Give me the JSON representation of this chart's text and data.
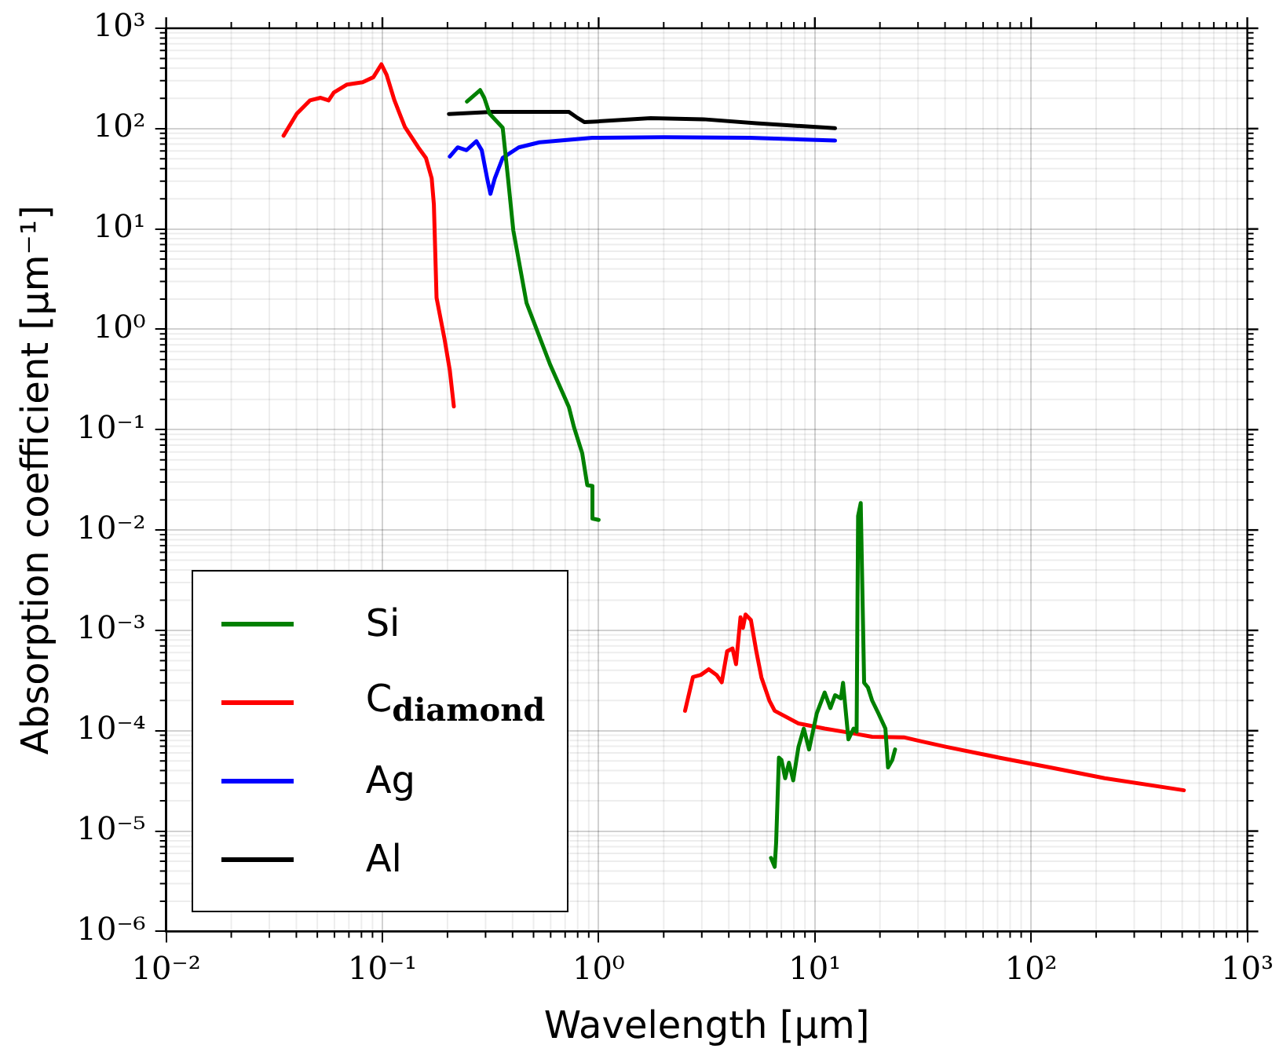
{
  "chart_data": {
    "type": "line",
    "xlabel": "Wavelength [µm]",
    "ylabel": "Absorption coefficient [µm⁻¹]",
    "log": "xy",
    "grid": true,
    "legend": "bottom left",
    "line_style": "solid",
    "marker": "none",
    "xlim": [
      0.01,
      1000
    ],
    "xticks": [
      {
        "value": 0.01,
        "label": "10⁻²"
      },
      {
        "value": 0.1,
        "label": "10⁻¹"
      },
      {
        "value": 1,
        "label": "10⁰"
      },
      {
        "value": 10,
        "label": "10¹"
      },
      {
        "value": 100,
        "label": "10²"
      },
      {
        "value": 1000,
        "label": "10³"
      }
    ],
    "ylim": [
      1e-06,
      1000
    ],
    "yticks": [
      {
        "value": 1e-06,
        "label": "10⁻⁶"
      },
      {
        "value": 1e-05,
        "label": "10⁻⁵"
      },
      {
        "value": 0.0001,
        "label": "10⁻⁴"
      },
      {
        "value": 0.001,
        "label": "10⁻³"
      },
      {
        "value": 0.01,
        "label": "10⁻²"
      },
      {
        "value": 0.1,
        "label": "10⁻¹"
      },
      {
        "value": 1,
        "label": "10⁰"
      },
      {
        "value": 10,
        "label": "10¹"
      },
      {
        "value": 100,
        "label": "10²"
      },
      {
        "value": 1000,
        "label": "10³"
      }
    ],
    "series": [
      {
        "name": "Si",
        "color": "#008000",
        "x": [
          0.246,
          0.283,
          0.296,
          0.313,
          0.36,
          0.381,
          0.403,
          0.464,
          0.598,
          0.728,
          0.77,
          0.84,
          0.886,
          0.936,
          0.936,
          1.0,
          3,
          6.27,
          6.52,
          6.62,
          6.82,
          7.01,
          7.29,
          7.59,
          7.94,
          8.4,
          8.89,
          9.4,
          10.2,
          11.1,
          11.8,
          12.4,
          13.2,
          13.5,
          14.3,
          15.1,
          15.6,
          15.85,
          16.3,
          16.9,
          17.6,
          18.4,
          19.7,
          21.2,
          21.8,
          22.8,
          23.5
        ],
        "values": [
          186,
          242,
          202,
          141,
          102,
          32,
          9.7,
          1.83,
          0.44,
          0.169,
          0.105,
          0.058,
          0.028,
          0.0275,
          0.013,
          0.0126,
          null,
          5.4e-06,
          4.4e-06,
          7.6e-06,
          5.4e-05,
          5.1e-05,
          3.36e-05,
          4.8e-05,
          3.2e-05,
          6.9e-05,
          0.000105,
          6.5e-05,
          0.000148,
          0.00024,
          0.000168,
          0.000226,
          0.00021,
          0.0003,
          8.2e-05,
          0.000105,
          9.8e-05,
          0.0138,
          0.0186,
          0.0003,
          0.00027,
          0.0002,
          0.000148,
          0.000105,
          4.3e-05,
          5.1e-05,
          6.5e-05
        ]
      },
      {
        "name": "C$_{diamond}$",
        "color": "#ff0000",
        "x": [
          0.0349,
          0.0402,
          0.0462,
          0.0518,
          0.0564,
          0.0596,
          0.0686,
          0.081,
          0.0908,
          0.0989,
          0.1045,
          0.1137,
          0.127,
          0.1465,
          0.159,
          0.169,
          0.173,
          0.178,
          0.194,
          0.205,
          0.214,
          1,
          2.51,
          2.73,
          2.97,
          3.23,
          3.51,
          3.71,
          3.93,
          4.16,
          4.32,
          4.53,
          4.65,
          4.78,
          5.06,
          5.36,
          5.66,
          6.16,
          6.52,
          8.4,
          11.1,
          14.7,
          18.4,
          25.8,
          30.6,
          40.6,
          71,
          125,
          219,
          509
        ],
        "values": [
          85,
          141,
          191,
          203,
          191,
          229,
          275,
          290,
          325,
          437,
          345,
          191,
          104,
          65,
          51,
          32,
          17.6,
          2.06,
          0.79,
          0.39,
          0.17,
          null,
          0.000158,
          0.000343,
          0.00036,
          0.00041,
          0.00036,
          0.000304,
          0.00062,
          0.00066,
          0.00046,
          0.00135,
          0.00106,
          0.00144,
          0.00127,
          0.00062,
          0.00034,
          0.0002,
          0.000158,
          0.000118,
          0.000105,
          9.5e-05,
          8.7e-05,
          8.6e-05,
          7.9e-05,
          6.9e-05,
          5.4e-05,
          4.27e-05,
          3.36e-05,
          2.55e-05
        ]
      },
      {
        "name": "Ag",
        "color": "#0000ff",
        "x": [
          0.205,
          0.223,
          0.245,
          0.272,
          0.288,
          0.305,
          0.316,
          0.331,
          0.36,
          0.427,
          0.533,
          0.936,
          2,
          5,
          12.4
        ],
        "values": [
          52.7,
          65,
          61,
          75,
          61,
          32,
          22.4,
          32,
          51,
          65,
          73,
          81,
          82,
          81,
          76
        ]
      },
      {
        "name": "Al",
        "color": "#000000",
        "x": [
          0.203,
          0.322,
          0.727,
          0.79,
          0.861,
          0.99,
          1.74,
          3.05,
          5.36,
          12.4
        ],
        "values": [
          140,
          147,
          147,
          130,
          116,
          118,
          127,
          124,
          113,
          101
        ]
      }
    ]
  }
}
